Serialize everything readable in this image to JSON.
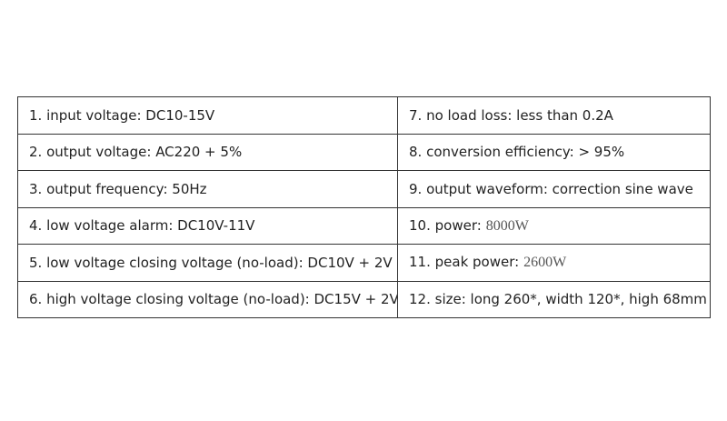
{
  "table": {
    "rows": [
      [
        "1. input voltage: DC10-15V",
        "7. no load loss: less than 0.2A"
      ],
      [
        "2. output voltage: AC220 + 5%",
        "8. conversion efficiency: > 95%"
      ],
      [
        "3. output frequency: 50Hz",
        "9. output waveform: correction sine wave"
      ],
      [
        "4. low voltage alarm: DC10V-11V",
        {
          "label": "10. power:",
          "value": "8000W"
        }
      ],
      [
        "5. low voltage closing voltage (no-load): DC10V + 2V",
        {
          "label": "11. peak power:",
          "value": "2600W"
        }
      ],
      [
        "6. high voltage closing voltage (no-load): DC15V + 2V",
        "12. size: long 260*, width 120*, high 68mm"
      ]
    ]
  }
}
